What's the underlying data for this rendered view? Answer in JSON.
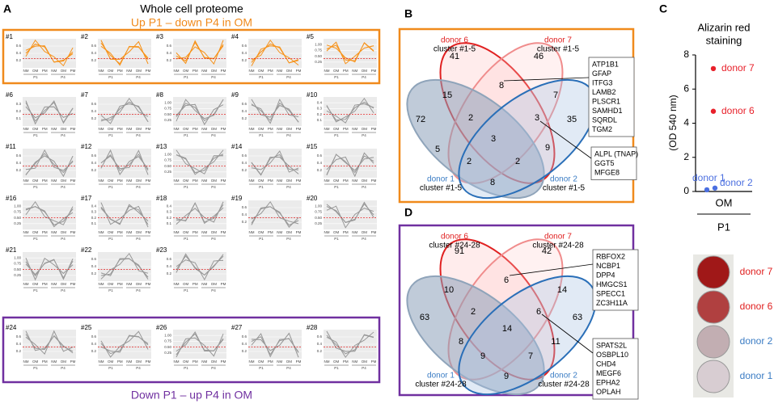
{
  "panel_a": {
    "letter": "A",
    "title": "Whole cell proteome",
    "top_group": "Up P1 – down P4 in OM",
    "bottom_group": "Down P1 – up P4 in OM",
    "x_labels": [
      "NM",
      "OM",
      "PM",
      "NM",
      "OM",
      "PM"
    ],
    "group_labels": [
      "P1",
      "P4"
    ],
    "clusters": [
      {
        "label": "#1",
        "yticks": [
          "0.2",
          "0.4",
          "0.6"
        ]
      },
      {
        "label": "#2",
        "yticks": [
          "0.2",
          "0.4",
          "0.6"
        ]
      },
      {
        "label": "#3",
        "yticks": [
          "0.2",
          "0.4",
          "0.6"
        ]
      },
      {
        "label": "#4",
        "yticks": [
          "0.2",
          "0.4",
          "0.6"
        ]
      },
      {
        "label": "#5",
        "yticks": [
          "0.25",
          "0.50",
          "0.75",
          "1.00"
        ]
      },
      {
        "label": "#6",
        "yticks": [
          "0.1",
          "0.2",
          "0.3"
        ]
      },
      {
        "label": "#7",
        "yticks": [
          "0.2",
          "0.4",
          "0.6"
        ]
      },
      {
        "label": "#8",
        "yticks": [
          "0.25",
          "0.50",
          "0.75",
          "1.00"
        ]
      },
      {
        "label": "#9",
        "yticks": [
          "0.2",
          "0.4",
          "0.6"
        ]
      },
      {
        "label": "#10",
        "yticks": [
          "0.1",
          "0.2",
          "0.3",
          "0.4"
        ]
      },
      {
        "label": "#11",
        "yticks": [
          "0.2",
          "0.4",
          "0.6"
        ]
      },
      {
        "label": "#12",
        "yticks": [
          "0.2",
          "0.4",
          "0.6"
        ]
      },
      {
        "label": "#13",
        "yticks": [
          "0.25",
          "0.50",
          "0.75",
          "1.00"
        ]
      },
      {
        "label": "#14",
        "yticks": [
          "0.2",
          "0.4",
          "0.6"
        ]
      },
      {
        "label": "#15",
        "yticks": [
          "0.2",
          "0.4",
          "0.6"
        ]
      },
      {
        "label": "#16",
        "yticks": [
          "0.25",
          "0.50",
          "0.75",
          "1.00"
        ]
      },
      {
        "label": "#17",
        "yticks": [
          "0.1",
          "0.2",
          "0.3",
          "0.4"
        ]
      },
      {
        "label": "#18",
        "yticks": [
          "0.1",
          "0.2",
          "0.3",
          "0.4"
        ]
      },
      {
        "label": "#19",
        "yticks": [
          "0.2",
          "0.4",
          "0.6"
        ]
      },
      {
        "label": "#20",
        "yticks": [
          "0.25",
          "0.50",
          "0.75",
          "1.00"
        ]
      },
      {
        "label": "#21",
        "yticks": [
          "0.25",
          "0.50",
          "0.75",
          "1.00"
        ]
      },
      {
        "label": "#22",
        "yticks": [
          "0.2",
          "0.4",
          "0.6"
        ]
      },
      {
        "label": "#23",
        "yticks": [
          "0.2",
          "0.4",
          "0.6"
        ]
      },
      {
        "label": "#24",
        "yticks": [
          "0.2",
          "0.4",
          "0.6"
        ]
      },
      {
        "label": "#25",
        "yticks": [
          "0.2",
          "0.4",
          "0.6"
        ]
      },
      {
        "label": "#26",
        "yticks": [
          "0.25",
          "0.50",
          "0.75",
          "1.00"
        ]
      },
      {
        "label": "#27",
        "yticks": [
          "0.2",
          "0.4",
          "0.6"
        ]
      },
      {
        "label": "#28",
        "yticks": [
          "0.2",
          "0.4",
          "0.6"
        ]
      }
    ]
  },
  "panel_b": {
    "letter": "B",
    "sets": [
      {
        "name": "donor 6",
        "subtitle": "cluster #1-5"
      },
      {
        "name": "donor 7",
        "subtitle": "cluster #1-5"
      },
      {
        "name": "donor 1",
        "subtitle": "cluster #1-5"
      },
      {
        "name": "donor 2",
        "subtitle": "cluster #1-5"
      }
    ],
    "counts": [
      41,
      8,
      46,
      15,
      2,
      3,
      7,
      72,
      3,
      35,
      5,
      2,
      9,
      2,
      8
    ],
    "gene_lists": [
      [
        "ATP1B1",
        "GFAP",
        "ITFG3",
        "LAMB2",
        "PLSCR1",
        "SAMHD1",
        "SQRDL",
        "TGM2"
      ],
      [
        "ALPL (TNAP)",
        "GGT5",
        "MFGE8"
      ]
    ]
  },
  "panel_c": {
    "letter": "C",
    "type": "scatter",
    "title": [
      "Alizarin red",
      "staining"
    ],
    "ylabel": "(OD 540 nm)",
    "ylim": [
      0,
      8
    ],
    "yticks": [
      0,
      2,
      4,
      6,
      8
    ],
    "xlabel": "OM",
    "group": "P1",
    "points": [
      {
        "name": "donor 7",
        "value": 7.2,
        "color": "#e8202a"
      },
      {
        "name": "donor 6",
        "value": 4.7,
        "color": "#e8202a"
      },
      {
        "name": "donor 1",
        "value": 0.1,
        "color": "#4b6fe0"
      },
      {
        "name": "donor 2",
        "value": 0.2,
        "color": "#4b6fe0"
      }
    ],
    "wells": [
      "donor 7",
      "donor 6",
      "donor 2",
      "donor 1"
    ]
  },
  "panel_d": {
    "letter": "D",
    "sets": [
      {
        "name": "donor 6",
        "subtitle": "cluster #24-28"
      },
      {
        "name": "donor 7",
        "subtitle": "cluster #24-28"
      },
      {
        "name": "donor 1",
        "subtitle": "cluster #24-28"
      },
      {
        "name": "donor 2",
        "subtitle": "cluster #24-28"
      }
    ],
    "counts": [
      91,
      6,
      42,
      10,
      2,
      6,
      14,
      63,
      14,
      63,
      8,
      9,
      7,
      11,
      9
    ],
    "gene_lists": [
      [
        "RBFOX2",
        "NCBP1",
        "DPP4",
        "HMGCS1",
        "SPECC1",
        "ZC3H11A"
      ],
      [
        "SPATS2L",
        "OSBPL10",
        "CHD4",
        "MEGF6",
        "EPHA2",
        "OPLAH"
      ]
    ]
  }
}
